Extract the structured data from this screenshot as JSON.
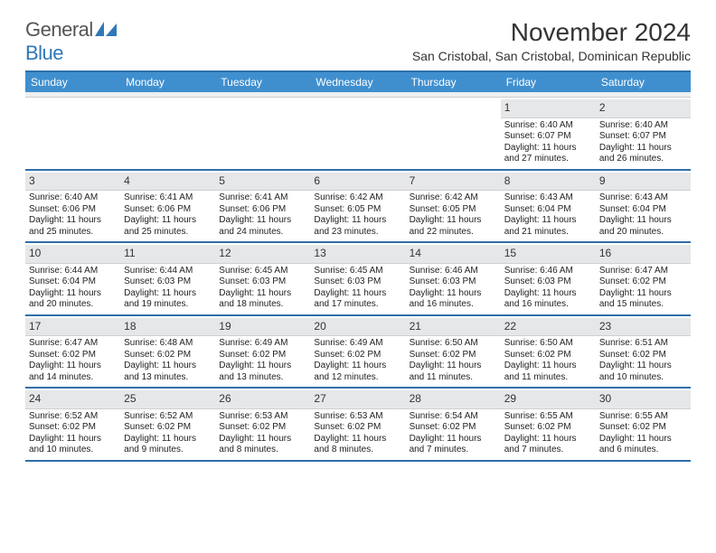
{
  "brand": {
    "text_general": "General",
    "text_blue": "Blue",
    "color_general": "#6a6a6a",
    "color_blue": "#2f78b8",
    "icon_color": "#2f78b8"
  },
  "title": "November 2024",
  "subtitle": "San Cristobal, San Cristobal, Dominican Republic",
  "colors": {
    "header_bar": "#3f8fcf",
    "row_divider": "#2f6fa8",
    "daynum_bg": "#e6e7e9",
    "background": "#ffffff"
  },
  "days_of_week": [
    "Sunday",
    "Monday",
    "Tuesday",
    "Wednesday",
    "Thursday",
    "Friday",
    "Saturday"
  ],
  "weeks": [
    [
      {
        "empty": true
      },
      {
        "empty": true
      },
      {
        "empty": true
      },
      {
        "empty": true
      },
      {
        "empty": true
      },
      {
        "day": "1",
        "sunrise": "Sunrise: 6:40 AM",
        "sunset": "Sunset: 6:07 PM",
        "daylight1": "Daylight: 11 hours",
        "daylight2": "and 27 minutes."
      },
      {
        "day": "2",
        "sunrise": "Sunrise: 6:40 AM",
        "sunset": "Sunset: 6:07 PM",
        "daylight1": "Daylight: 11 hours",
        "daylight2": "and 26 minutes."
      }
    ],
    [
      {
        "day": "3",
        "sunrise": "Sunrise: 6:40 AM",
        "sunset": "Sunset: 6:06 PM",
        "daylight1": "Daylight: 11 hours",
        "daylight2": "and 25 minutes."
      },
      {
        "day": "4",
        "sunrise": "Sunrise: 6:41 AM",
        "sunset": "Sunset: 6:06 PM",
        "daylight1": "Daylight: 11 hours",
        "daylight2": "and 25 minutes."
      },
      {
        "day": "5",
        "sunrise": "Sunrise: 6:41 AM",
        "sunset": "Sunset: 6:06 PM",
        "daylight1": "Daylight: 11 hours",
        "daylight2": "and 24 minutes."
      },
      {
        "day": "6",
        "sunrise": "Sunrise: 6:42 AM",
        "sunset": "Sunset: 6:05 PM",
        "daylight1": "Daylight: 11 hours",
        "daylight2": "and 23 minutes."
      },
      {
        "day": "7",
        "sunrise": "Sunrise: 6:42 AM",
        "sunset": "Sunset: 6:05 PM",
        "daylight1": "Daylight: 11 hours",
        "daylight2": "and 22 minutes."
      },
      {
        "day": "8",
        "sunrise": "Sunrise: 6:43 AM",
        "sunset": "Sunset: 6:04 PM",
        "daylight1": "Daylight: 11 hours",
        "daylight2": "and 21 minutes."
      },
      {
        "day": "9",
        "sunrise": "Sunrise: 6:43 AM",
        "sunset": "Sunset: 6:04 PM",
        "daylight1": "Daylight: 11 hours",
        "daylight2": "and 20 minutes."
      }
    ],
    [
      {
        "day": "10",
        "sunrise": "Sunrise: 6:44 AM",
        "sunset": "Sunset: 6:04 PM",
        "daylight1": "Daylight: 11 hours",
        "daylight2": "and 20 minutes."
      },
      {
        "day": "11",
        "sunrise": "Sunrise: 6:44 AM",
        "sunset": "Sunset: 6:03 PM",
        "daylight1": "Daylight: 11 hours",
        "daylight2": "and 19 minutes."
      },
      {
        "day": "12",
        "sunrise": "Sunrise: 6:45 AM",
        "sunset": "Sunset: 6:03 PM",
        "daylight1": "Daylight: 11 hours",
        "daylight2": "and 18 minutes."
      },
      {
        "day": "13",
        "sunrise": "Sunrise: 6:45 AM",
        "sunset": "Sunset: 6:03 PM",
        "daylight1": "Daylight: 11 hours",
        "daylight2": "and 17 minutes."
      },
      {
        "day": "14",
        "sunrise": "Sunrise: 6:46 AM",
        "sunset": "Sunset: 6:03 PM",
        "daylight1": "Daylight: 11 hours",
        "daylight2": "and 16 minutes."
      },
      {
        "day": "15",
        "sunrise": "Sunrise: 6:46 AM",
        "sunset": "Sunset: 6:03 PM",
        "daylight1": "Daylight: 11 hours",
        "daylight2": "and 16 minutes."
      },
      {
        "day": "16",
        "sunrise": "Sunrise: 6:47 AM",
        "sunset": "Sunset: 6:02 PM",
        "daylight1": "Daylight: 11 hours",
        "daylight2": "and 15 minutes."
      }
    ],
    [
      {
        "day": "17",
        "sunrise": "Sunrise: 6:47 AM",
        "sunset": "Sunset: 6:02 PM",
        "daylight1": "Daylight: 11 hours",
        "daylight2": "and 14 minutes."
      },
      {
        "day": "18",
        "sunrise": "Sunrise: 6:48 AM",
        "sunset": "Sunset: 6:02 PM",
        "daylight1": "Daylight: 11 hours",
        "daylight2": "and 13 minutes."
      },
      {
        "day": "19",
        "sunrise": "Sunrise: 6:49 AM",
        "sunset": "Sunset: 6:02 PM",
        "daylight1": "Daylight: 11 hours",
        "daylight2": "and 13 minutes."
      },
      {
        "day": "20",
        "sunrise": "Sunrise: 6:49 AM",
        "sunset": "Sunset: 6:02 PM",
        "daylight1": "Daylight: 11 hours",
        "daylight2": "and 12 minutes."
      },
      {
        "day": "21",
        "sunrise": "Sunrise: 6:50 AM",
        "sunset": "Sunset: 6:02 PM",
        "daylight1": "Daylight: 11 hours",
        "daylight2": "and 11 minutes."
      },
      {
        "day": "22",
        "sunrise": "Sunrise: 6:50 AM",
        "sunset": "Sunset: 6:02 PM",
        "daylight1": "Daylight: 11 hours",
        "daylight2": "and 11 minutes."
      },
      {
        "day": "23",
        "sunrise": "Sunrise: 6:51 AM",
        "sunset": "Sunset: 6:02 PM",
        "daylight1": "Daylight: 11 hours",
        "daylight2": "and 10 minutes."
      }
    ],
    [
      {
        "day": "24",
        "sunrise": "Sunrise: 6:52 AM",
        "sunset": "Sunset: 6:02 PM",
        "daylight1": "Daylight: 11 hours",
        "daylight2": "and 10 minutes."
      },
      {
        "day": "25",
        "sunrise": "Sunrise: 6:52 AM",
        "sunset": "Sunset: 6:02 PM",
        "daylight1": "Daylight: 11 hours",
        "daylight2": "and 9 minutes."
      },
      {
        "day": "26",
        "sunrise": "Sunrise: 6:53 AM",
        "sunset": "Sunset: 6:02 PM",
        "daylight1": "Daylight: 11 hours",
        "daylight2": "and 8 minutes."
      },
      {
        "day": "27",
        "sunrise": "Sunrise: 6:53 AM",
        "sunset": "Sunset: 6:02 PM",
        "daylight1": "Daylight: 11 hours",
        "daylight2": "and 8 minutes."
      },
      {
        "day": "28",
        "sunrise": "Sunrise: 6:54 AM",
        "sunset": "Sunset: 6:02 PM",
        "daylight1": "Daylight: 11 hours",
        "daylight2": "and 7 minutes."
      },
      {
        "day": "29",
        "sunrise": "Sunrise: 6:55 AM",
        "sunset": "Sunset: 6:02 PM",
        "daylight1": "Daylight: 11 hours",
        "daylight2": "and 7 minutes."
      },
      {
        "day": "30",
        "sunrise": "Sunrise: 6:55 AM",
        "sunset": "Sunset: 6:02 PM",
        "daylight1": "Daylight: 11 hours",
        "daylight2": "and 6 minutes."
      }
    ]
  ]
}
